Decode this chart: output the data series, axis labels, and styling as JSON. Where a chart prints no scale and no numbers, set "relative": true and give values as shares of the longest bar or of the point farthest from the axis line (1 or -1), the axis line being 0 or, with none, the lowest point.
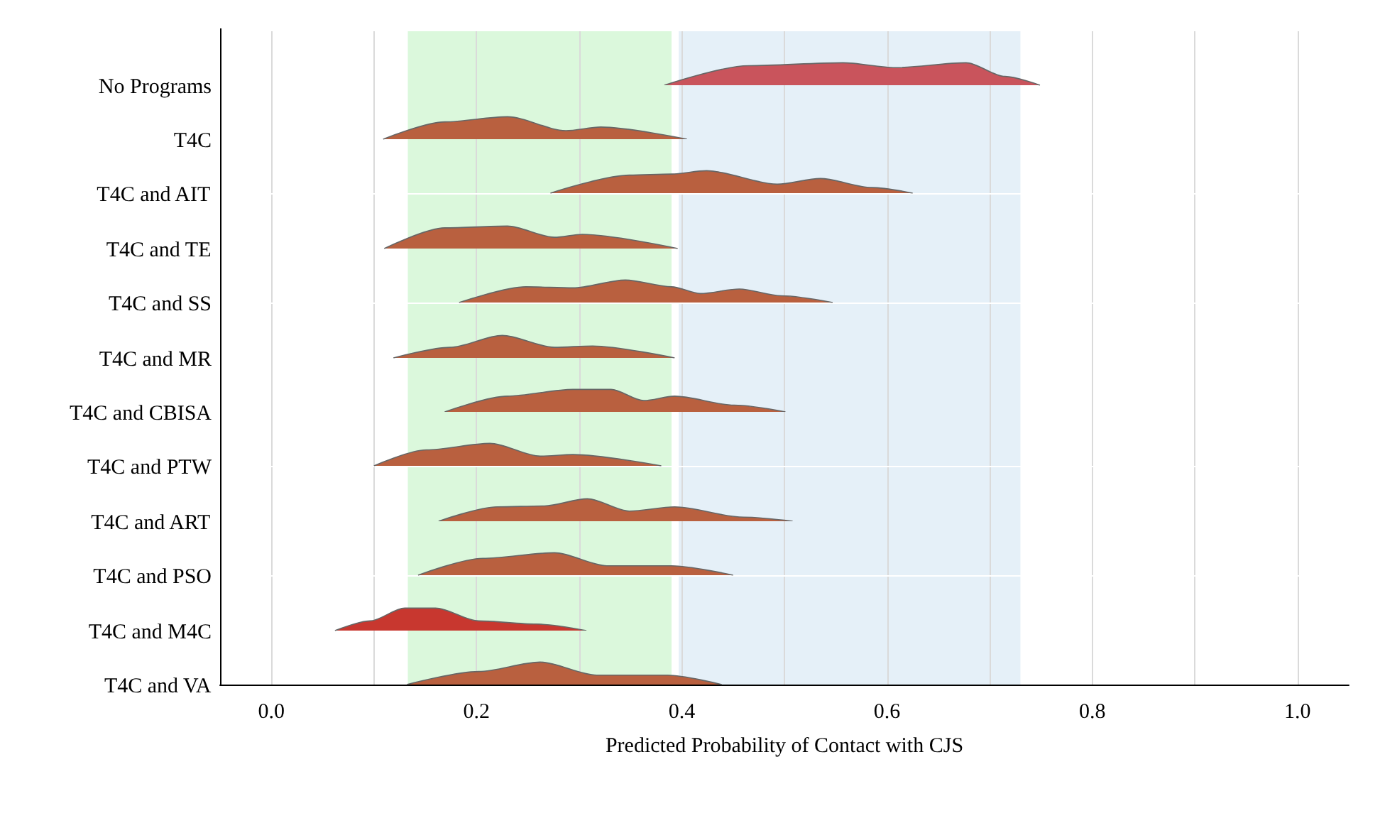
{
  "chart_data": [
    {
      "type": "area",
      "relative": true,
      "ylabel": "No Programs",
      "color": "#c9545c",
      "x": [
        0.383,
        0.465,
        0.557,
        0.608,
        0.677,
        0.715,
        0.749
      ],
      "values": [
        0,
        0.87,
        1,
        0.78,
        1,
        0.39,
        0
      ],
      "xticks": [
        0,
        0.1,
        0.2,
        0.3,
        0.4,
        0.5,
        0.6,
        0.7,
        0.8,
        0.9,
        1
      ],
      "tick_labels": false,
      "grid": "x",
      "bands": [
        {
          "axis": "x",
          "from": 0.133,
          "to": 0.39,
          "color": "#dbf8dc"
        },
        {
          "axis": "x",
          "from": 0.397,
          "to": 0.73,
          "color": "#e5f0f8"
        }
      ]
    },
    {
      "type": "area",
      "relative": true,
      "ylabel": "T4C",
      "color": "#b9603f",
      "x": [
        0.109,
        0.169,
        0.23,
        0.287,
        0.321,
        0.405
      ],
      "values": [
        0,
        0.77,
        1,
        0.38,
        0.54,
        0
      ],
      "xticks": [
        0,
        0.1,
        0.2,
        0.3,
        0.4,
        0.5,
        0.6,
        0.7,
        0.8,
        0.9,
        1
      ],
      "tick_labels": false,
      "grid": "x",
      "bands": [
        {
          "axis": "x",
          "from": 0.133,
          "to": 0.39,
          "color": "#dbf8dc"
        },
        {
          "axis": "x",
          "from": 0.397,
          "to": 0.73,
          "color": "#e5f0f8"
        }
      ]
    },
    {
      "type": "area",
      "relative": true,
      "ylabel": "T4C and AIT",
      "color": "#b9603f",
      "x": [
        0.272,
        0.349,
        0.39,
        0.424,
        0.493,
        0.535,
        0.585,
        0.625
      ],
      "values": [
        0,
        0.8,
        0.85,
        1,
        0.4,
        0.65,
        0.25,
        0
      ],
      "xticks": [
        0,
        0.1,
        0.2,
        0.3,
        0.4,
        0.5,
        0.6,
        0.7,
        0.8,
        0.9,
        1
      ],
      "tick_labels": false,
      "grid": "x",
      "bands": [
        {
          "axis": "x",
          "from": 0.133,
          "to": 0.39,
          "color": "#dbf8dc"
        },
        {
          "axis": "x",
          "from": 0.397,
          "to": 0.73,
          "color": "#e5f0f8"
        }
      ]
    },
    {
      "type": "area",
      "relative": true,
      "ylabel": "T4C and TE",
      "color": "#b9603f",
      "x": [
        0.11,
        0.169,
        0.23,
        0.276,
        0.303,
        0.396
      ],
      "values": [
        0,
        0.92,
        1,
        0.5,
        0.63,
        0
      ],
      "xticks": [
        0,
        0.1,
        0.2,
        0.3,
        0.4,
        0.5,
        0.6,
        0.7,
        0.8,
        0.9,
        1
      ],
      "tick_labels": false,
      "grid": "x",
      "bands": [
        {
          "axis": "x",
          "from": 0.133,
          "to": 0.39,
          "color": "#dbf8dc"
        },
        {
          "axis": "x",
          "from": 0.397,
          "to": 0.73,
          "color": "#e5f0f8"
        }
      ]
    },
    {
      "type": "area",
      "relative": true,
      "ylabel": "T4C and SS",
      "color": "#b9603f",
      "x": [
        0.183,
        0.248,
        0.294,
        0.345,
        0.39,
        0.418,
        0.456,
        0.497,
        0.547
      ],
      "values": [
        0,
        0.7,
        0.65,
        1,
        0.7,
        0.4,
        0.6,
        0.3,
        0
      ],
      "xticks": [
        0,
        0.1,
        0.2,
        0.3,
        0.4,
        0.5,
        0.6,
        0.7,
        0.8,
        0.9,
        1
      ],
      "tick_labels": false,
      "grid": "x",
      "bands": [
        {
          "axis": "x",
          "from": 0.133,
          "to": 0.39,
          "color": "#dbf8dc"
        },
        {
          "axis": "x",
          "from": 0.397,
          "to": 0.73,
          "color": "#e5f0f8"
        }
      ]
    },
    {
      "type": "area",
      "relative": true,
      "ylabel": "T4C and MR",
      "color": "#b9603f",
      "x": [
        0.119,
        0.174,
        0.225,
        0.276,
        0.313,
        0.393
      ],
      "values": [
        0,
        0.47,
        1,
        0.47,
        0.53,
        0
      ],
      "xticks": [
        0,
        0.1,
        0.2,
        0.3,
        0.4,
        0.5,
        0.6,
        0.7,
        0.8,
        0.9,
        1
      ],
      "tick_labels": false,
      "grid": "x",
      "bands": [
        {
          "axis": "x",
          "from": 0.133,
          "to": 0.39,
          "color": "#dbf8dc"
        },
        {
          "axis": "x",
          "from": 0.397,
          "to": 0.73,
          "color": "#e5f0f8"
        }
      ]
    },
    {
      "type": "area",
      "relative": true,
      "ylabel": "T4C and CBISA",
      "color": "#b9603f",
      "x": [
        0.169,
        0.23,
        0.294,
        0.331,
        0.363,
        0.393,
        0.451,
        0.501
      ],
      "values": [
        0,
        0.7,
        1,
        1,
        0.5,
        0.7,
        0.3,
        0
      ],
      "xticks": [
        0,
        0.1,
        0.2,
        0.3,
        0.4,
        0.5,
        0.6,
        0.7,
        0.8,
        0.9,
        1
      ],
      "tick_labels": false,
      "grid": "x",
      "bands": [
        {
          "axis": "x",
          "from": 0.133,
          "to": 0.39,
          "color": "#dbf8dc"
        },
        {
          "axis": "x",
          "from": 0.397,
          "to": 0.73,
          "color": "#e5f0f8"
        }
      ]
    },
    {
      "type": "area",
      "relative": true,
      "ylabel": "T4C and PTW",
      "color": "#b9603f",
      "x": [
        0.1,
        0.151,
        0.213,
        0.262,
        0.294,
        0.38
      ],
      "values": [
        0,
        0.71,
        1,
        0.43,
        0.5,
        0
      ],
      "xticks": [
        0,
        0.1,
        0.2,
        0.3,
        0.4,
        0.5,
        0.6,
        0.7,
        0.8,
        0.9,
        1
      ],
      "tick_labels": false,
      "grid": "x",
      "bands": [
        {
          "axis": "x",
          "from": 0.133,
          "to": 0.39,
          "color": "#dbf8dc"
        },
        {
          "axis": "x",
          "from": 0.397,
          "to": 0.73,
          "color": "#e5f0f8"
        }
      ]
    },
    {
      "type": "area",
      "relative": true,
      "ylabel": "T4C and ART",
      "color": "#b9603f",
      "x": [
        0.163,
        0.22,
        0.266,
        0.308,
        0.349,
        0.393,
        0.46,
        0.508
      ],
      "values": [
        0,
        0.64,
        0.68,
        1,
        0.45,
        0.64,
        0.18,
        0
      ],
      "xticks": [
        0,
        0.1,
        0.2,
        0.3,
        0.4,
        0.5,
        0.6,
        0.7,
        0.8,
        0.9,
        1
      ],
      "tick_labels": false,
      "grid": "x",
      "bands": [
        {
          "axis": "x",
          "from": 0.133,
          "to": 0.39,
          "color": "#dbf8dc"
        },
        {
          "axis": "x",
          "from": 0.397,
          "to": 0.73,
          "color": "#e5f0f8"
        }
      ]
    },
    {
      "type": "area",
      "relative": true,
      "ylabel": "T4C and PSO",
      "color": "#b9603f",
      "x": [
        0.143,
        0.206,
        0.276,
        0.327,
        0.39,
        0.45
      ],
      "values": [
        0,
        0.75,
        1,
        0.42,
        0.42,
        0
      ],
      "xticks": [
        0,
        0.1,
        0.2,
        0.3,
        0.4,
        0.5,
        0.6,
        0.7,
        0.8,
        0.9,
        1
      ],
      "tick_labels": false,
      "grid": "x",
      "bands": [
        {
          "axis": "x",
          "from": 0.133,
          "to": 0.39,
          "color": "#dbf8dc"
        },
        {
          "axis": "x",
          "from": 0.397,
          "to": 0.73,
          "color": "#e5f0f8"
        }
      ]
    },
    {
      "type": "area",
      "relative": true,
      "ylabel": "T4C and M4C",
      "color": "#c8372f",
      "x": [
        0.062,
        0.096,
        0.13,
        0.16,
        0.202,
        0.258,
        0.307
      ],
      "values": [
        0,
        0.43,
        1,
        1,
        0.43,
        0.29,
        0
      ],
      "xticks": [
        0,
        0.1,
        0.2,
        0.3,
        0.4,
        0.5,
        0.6,
        0.7,
        0.8,
        0.9,
        1
      ],
      "tick_labels": false,
      "grid": "x",
      "bands": [
        {
          "axis": "x",
          "from": 0.133,
          "to": 0.39,
          "color": "#dbf8dc"
        },
        {
          "axis": "x",
          "from": 0.397,
          "to": 0.73,
          "color": "#e5f0f8"
        }
      ]
    },
    {
      "type": "area",
      "relative": true,
      "ylabel": "T4C and VA",
      "xlabel": "Predicted Probability of Contact with CJS",
      "color": "#b9603f",
      "x": [
        0.132,
        0.202,
        0.262,
        0.317,
        0.386,
        0.439
      ],
      "values": [
        0,
        0.58,
        1,
        0.42,
        0.42,
        0
      ],
      "xlim": [
        -0.05,
        1.05
      ],
      "xticks": [
        {
          "value": 0,
          "label": "0.0"
        },
        {
          "value": 0.1,
          "label": null
        },
        {
          "value": 0.2,
          "label": "0.2"
        },
        {
          "value": 0.3,
          "label": null
        },
        {
          "value": 0.4,
          "label": "0.4"
        },
        {
          "value": 0.5,
          "label": null
        },
        {
          "value": 0.6,
          "label": "0.6"
        },
        {
          "value": 0.7,
          "label": null
        },
        {
          "value": 0.8,
          "label": "0.8"
        },
        {
          "value": 0.9,
          "label": null
        },
        {
          "value": 1,
          "label": "1.0"
        }
      ],
      "tick_labels": "x",
      "grid": "x",
      "bands": [
        {
          "axis": "x",
          "from": 0.133,
          "to": 0.39,
          "color": "#dbf8dc"
        },
        {
          "axis": "x",
          "from": 0.397,
          "to": 0.73,
          "color": "#e5f0f8"
        }
      ]
    }
  ]
}
